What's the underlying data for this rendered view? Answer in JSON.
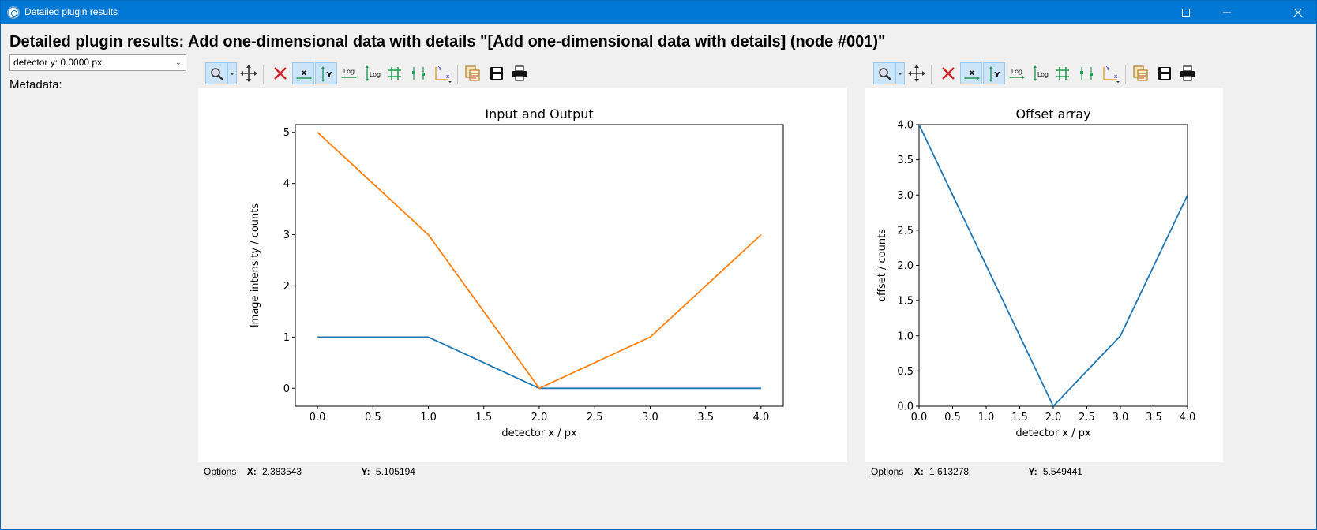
{
  "window": {
    "title": "Detailed plugin results"
  },
  "heading": "Detailed plugin results: Add one-dimensional data with details \"[Add one-dimensional data with details] (node #001)\"",
  "selector": {
    "value": "detector y: 0.0000 px"
  },
  "metadata_label": "Metadata:",
  "toolbar_icons": [
    "zoom-icon",
    "zoom-menu-icon",
    "pan-icon",
    "clear-icon",
    "autoscale-x-icon",
    "autoscale-y-icon",
    "log-x-icon",
    "log-y-icon",
    "grid-icon",
    "curve-style-icon",
    "axes-origin-icon",
    "copy-icon",
    "save-icon",
    "print-icon"
  ],
  "left_plot": {
    "status": {
      "options": "Options",
      "x_label": "X:",
      "x_value": "2.383543",
      "y_label": "Y:",
      "y_value": "5.105194"
    }
  },
  "right_plot": {
    "status": {
      "options": "Options",
      "x_label": "X:",
      "x_value": "1.613278",
      "y_label": "Y:",
      "y_value": "5.549441"
    }
  },
  "chart_data": [
    {
      "type": "line",
      "title": "Input and Output",
      "xlabel": "detector x / px",
      "ylabel": "Image intensity / counts",
      "xlim": [
        -0.2,
        4.2
      ],
      "ylim": [
        -0.35,
        5.15
      ],
      "xticks": [
        "0.0",
        "0.5",
        "1.0",
        "1.5",
        "2.0",
        "2.5",
        "3.0",
        "3.5",
        "4.0"
      ],
      "yticks": [
        "0",
        "1",
        "2",
        "3",
        "4",
        "5"
      ],
      "x": [
        0,
        1,
        2,
        3,
        4
      ],
      "series": [
        {
          "values": [
            1,
            1,
            0,
            0,
            0
          ],
          "color": "#1f77b4"
        },
        {
          "values": [
            5,
            3,
            0,
            1,
            3
          ],
          "color": "#ff7f0e"
        }
      ]
    },
    {
      "type": "line",
      "title": "Offset array",
      "xlabel": "detector x / px",
      "ylabel": "offset / counts",
      "xlim": [
        0,
        4
      ],
      "ylim": [
        0,
        4
      ],
      "xticks": [
        "0.0",
        "0.5",
        "1.0",
        "1.5",
        "2.0",
        "2.5",
        "3.0",
        "3.5",
        "4.0"
      ],
      "yticks": [
        "0.0",
        "0.5",
        "1.0",
        "1.5",
        "2.0",
        "2.5",
        "3.0",
        "3.5",
        "4.0"
      ],
      "x": [
        0,
        1,
        2,
        3,
        4
      ],
      "series": [
        {
          "values": [
            4,
            2,
            0,
            1,
            3
          ],
          "color": "#1f77b4"
        }
      ]
    }
  ]
}
